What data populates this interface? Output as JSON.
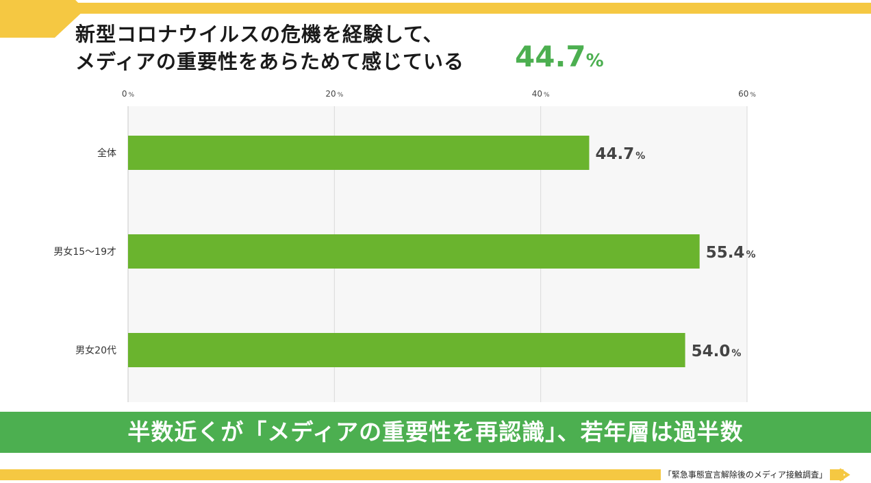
{
  "header": {
    "title_line1": "新型コロナウイルスの危機を経験して、",
    "title_line2": "メディアの重要性をあらためて感じている",
    "headline_value": "44.7",
    "headline_unit": "%"
  },
  "banner": {
    "text": "半数近くが「メディアの重要性を再認識」、若年層は過半数"
  },
  "footer": {
    "source": "「緊急事態宣言解除後のメディア接触調査」"
  },
  "colors": {
    "bar": "#6ab42e",
    "accent": "#4caf50",
    "band": "#f5c842"
  },
  "chart_data": {
    "type": "bar",
    "orientation": "horizontal",
    "categories": [
      "全体",
      "男女15〜19才",
      "男女20代"
    ],
    "values": [
      44.7,
      55.4,
      54.0
    ],
    "value_labels": [
      "44.7",
      "55.4",
      "54.0"
    ],
    "unit": "%",
    "xlim": [
      0,
      60
    ],
    "ticks": [
      0,
      20,
      40,
      60
    ],
    "tick_labels": [
      "0",
      "20",
      "40",
      "60"
    ],
    "grid": true
  }
}
